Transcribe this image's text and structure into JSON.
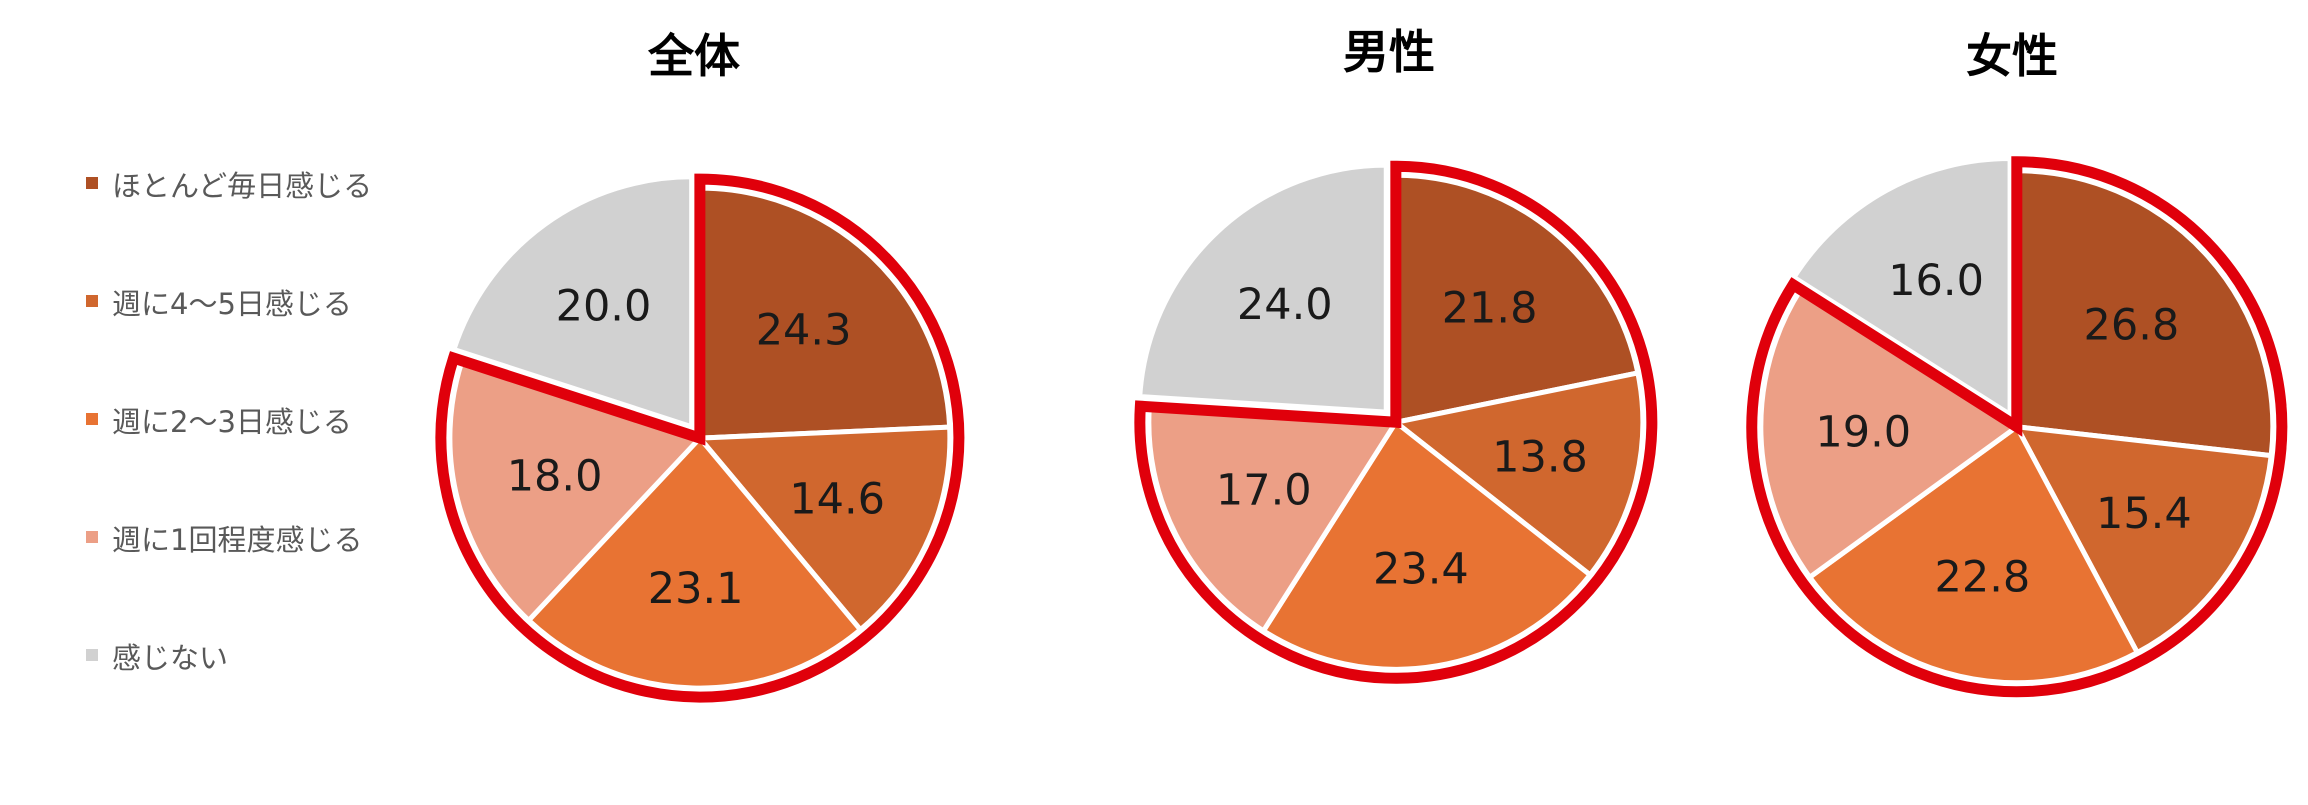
{
  "legend": [
    {
      "label": "ほとんど毎日感じる",
      "color": "#ae5024"
    },
    {
      "label": "週に4〜5日感じる",
      "color": "#d0672e"
    },
    {
      "label": "週に2〜3日感じる",
      "color": "#e87333"
    },
    {
      "label": "週に1回程度感じる",
      "color": "#ec9f86"
    },
    {
      "label": "感じない",
      "color": "#d1d1d1"
    }
  ],
  "chart_data": [
    {
      "type": "pie",
      "title": "全体",
      "categories": [
        "ほとんど毎日感じる",
        "週に4〜5日感じる",
        "週に2〜3日感じる",
        "週に1回程度感じる",
        "感じない"
      ],
      "values": [
        24.3,
        14.6,
        23.1,
        18.0,
        20.0
      ],
      "labels": [
        "24.3",
        "14.6",
        "23.1",
        "18.0",
        "20.0"
      ]
    },
    {
      "type": "pie",
      "title": "男性",
      "categories": [
        "ほとんど毎日感じる",
        "週に4〜5日感じる",
        "週に2〜3日感じる",
        "週に1回程度感じる",
        "感じない"
      ],
      "values": [
        21.8,
        13.8,
        23.4,
        17.0,
        24.0
      ],
      "labels": [
        "21.8",
        "13.8",
        "23.4",
        "17.0",
        "24.0"
      ]
    },
    {
      "type": "pie",
      "title": "女性",
      "categories": [
        "ほとんど毎日感じる",
        "週に4〜5日感じる",
        "週に2〜3日感じる",
        "週に1回程度感じる",
        "感じない"
      ],
      "values": [
        26.8,
        15.4,
        22.8,
        19.0,
        16.0
      ],
      "labels": [
        "26.8",
        "15.4",
        "22.8",
        "19.0",
        "16.0"
      ]
    }
  ],
  "highlight_color": "#e0000b"
}
